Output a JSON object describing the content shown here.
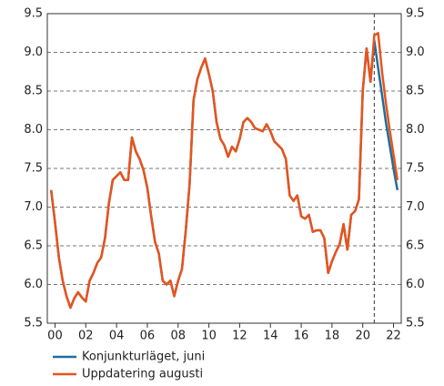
{
  "chart_data": {
    "type": "line",
    "x": [
      1999.75,
      2000,
      2000.25,
      2000.5,
      2000.75,
      2001,
      2001.25,
      2001.5,
      2001.75,
      2002,
      2002.25,
      2002.5,
      2002.75,
      2003,
      2003.25,
      2003.5,
      2003.75,
      2004,
      2004.25,
      2004.5,
      2004.75,
      2005,
      2005.25,
      2005.5,
      2005.75,
      2006,
      2006.25,
      2006.5,
      2006.75,
      2007,
      2007.25,
      2007.5,
      2007.75,
      2008,
      2008.25,
      2008.5,
      2008.75,
      2009,
      2009.25,
      2009.5,
      2009.75,
      2010,
      2010.25,
      2010.5,
      2010.75,
      2011,
      2011.25,
      2011.5,
      2011.75,
      2012,
      2012.25,
      2012.5,
      2012.75,
      2013,
      2013.25,
      2013.5,
      2013.75,
      2014,
      2014.25,
      2014.5,
      2014.75,
      2015,
      2015.25,
      2015.5,
      2015.75,
      2016,
      2016.25,
      2016.5,
      2016.75,
      2017,
      2017.25,
      2017.5,
      2017.75,
      2018,
      2018.25,
      2018.5,
      2018.75,
      2019,
      2019.25,
      2019.5,
      2019.75,
      2020,
      2020.25,
      2020.5,
      2020.75,
      2021,
      2021.25,
      2021.5,
      2021.75,
      2022,
      2022.25
    ],
    "series": [
      {
        "name": "Konjunkturläget, juni",
        "color": "#1f6e9c",
        "values": [
          7.22,
          6.8,
          6.35,
          6.05,
          5.85,
          5.7,
          5.82,
          5.9,
          5.83,
          5.78,
          6.05,
          6.15,
          6.28,
          6.35,
          6.6,
          7.05,
          7.35,
          7.4,
          7.45,
          7.35,
          7.35,
          7.9,
          7.72,
          7.62,
          7.48,
          7.25,
          6.88,
          6.55,
          6.4,
          6.05,
          6.0,
          6.05,
          5.85,
          6.05,
          6.2,
          6.7,
          7.3,
          8.38,
          8.65,
          8.8,
          8.92,
          8.72,
          8.5,
          8.1,
          7.88,
          7.8,
          7.65,
          7.78,
          7.72,
          7.88,
          8.1,
          8.15,
          8.1,
          8.02,
          8.0,
          7.98,
          8.07,
          7.98,
          7.85,
          7.8,
          7.75,
          7.62,
          7.15,
          7.08,
          7.15,
          6.88,
          6.85,
          6.9,
          6.68,
          6.7,
          6.7,
          6.6,
          6.15,
          6.3,
          6.42,
          6.52,
          6.78,
          6.45,
          6.9,
          6.95,
          7.1,
          8.5,
          9.05,
          8.62,
          9.15,
          8.8,
          8.45,
          8.1,
          7.8,
          7.5,
          7.22
        ]
      },
      {
        "name": "Uppdatering augusti",
        "color": "#e8541c",
        "values": [
          7.22,
          6.8,
          6.35,
          6.05,
          5.85,
          5.7,
          5.82,
          5.9,
          5.83,
          5.78,
          6.05,
          6.15,
          6.28,
          6.35,
          6.6,
          7.05,
          7.35,
          7.4,
          7.45,
          7.35,
          7.35,
          7.9,
          7.72,
          7.62,
          7.48,
          7.25,
          6.88,
          6.55,
          6.4,
          6.05,
          6.0,
          6.05,
          5.85,
          6.05,
          6.2,
          6.7,
          7.3,
          8.38,
          8.65,
          8.8,
          8.92,
          8.72,
          8.5,
          8.1,
          7.88,
          7.8,
          7.65,
          7.78,
          7.72,
          7.88,
          8.1,
          8.15,
          8.1,
          8.02,
          8.0,
          7.98,
          8.07,
          7.98,
          7.85,
          7.8,
          7.75,
          7.62,
          7.15,
          7.08,
          7.15,
          6.88,
          6.85,
          6.9,
          6.68,
          6.7,
          6.7,
          6.6,
          6.15,
          6.3,
          6.42,
          6.52,
          6.78,
          6.45,
          6.9,
          6.95,
          7.1,
          8.5,
          9.05,
          8.62,
          9.22,
          9.25,
          8.75,
          8.35,
          8.0,
          7.68,
          7.35
        ]
      }
    ],
    "xlim": [
      1999.5,
      2022.5
    ],
    "xticks": [
      {
        "value": 2000,
        "label": "00"
      },
      {
        "value": 2002,
        "label": "02"
      },
      {
        "value": 2004,
        "label": "04"
      },
      {
        "value": 2006,
        "label": "06"
      },
      {
        "value": 2008,
        "label": "08"
      },
      {
        "value": 2010,
        "label": "10"
      },
      {
        "value": 2012,
        "label": "12"
      },
      {
        "value": 2014,
        "label": "14"
      },
      {
        "value": 2016,
        "label": "16"
      },
      {
        "value": 2018,
        "label": "18"
      },
      {
        "value": 2020,
        "label": "20"
      },
      {
        "value": 2022,
        "label": "22"
      }
    ],
    "ylim": [
      5.5,
      9.5
    ],
    "yticks": [
      5.5,
      {
        "value": 6,
        "label": "6.0"
      },
      6.5,
      {
        "value": 7,
        "label": "7.0"
      },
      7.5,
      {
        "value": 8,
        "label": "8.0"
      },
      8.5,
      {
        "value": 9,
        "label": "9.0"
      },
      9.5
    ],
    "vline": 2020.75,
    "grid": true
  }
}
